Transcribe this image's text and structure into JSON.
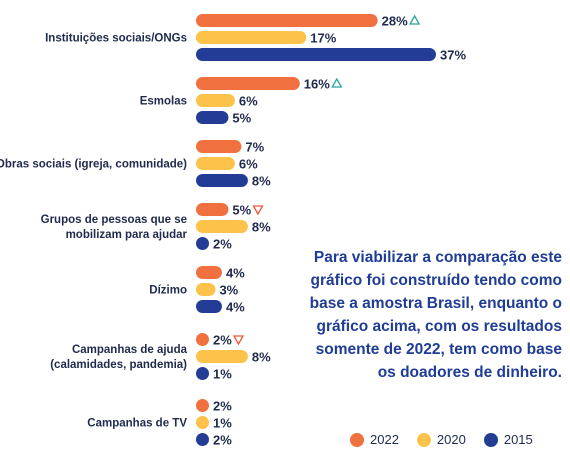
{
  "chart_data": {
    "type": "bar",
    "orientation": "horizontal",
    "categories": [
      [
        "Instituições sociais/ONGs"
      ],
      [
        "Esmolas"
      ],
      [
        "Obras sociais (igreja, comunidade)"
      ],
      [
        "Grupos de pessoas que se",
        "mobilizam para ajudar"
      ],
      [
        "Dízimo"
      ],
      [
        "Campanhas de ajuda",
        "(calamidades, pandemia)"
      ],
      [
        "Campanhas de TV"
      ]
    ],
    "series": [
      {
        "name": "2022",
        "color": "#f07040",
        "values": [
          28,
          16,
          7,
          5,
          4,
          2,
          2
        ]
      },
      {
        "name": "2020",
        "color": "#fcc24a",
        "values": [
          17,
          6,
          6,
          8,
          3,
          8,
          1
        ]
      },
      {
        "name": "2015",
        "color": "#233d96",
        "values": [
          37,
          5,
          8,
          2,
          4,
          1,
          2
        ]
      }
    ],
    "value_suffix": "%",
    "markers": [
      {
        "category": 0,
        "series": 0,
        "direction": "up",
        "color": "#2aa59a"
      },
      {
        "category": 1,
        "series": 0,
        "direction": "up",
        "color": "#2aa59a"
      },
      {
        "category": 3,
        "series": 0,
        "direction": "down",
        "color": "#e8583a"
      },
      {
        "category": 5,
        "series": 0,
        "direction": "down",
        "color": "#e8583a"
      }
    ],
    "legend_position": "bottom-right",
    "grid": false
  },
  "note": "Para viabilizar a comparação este gráfico foi construído tendo como base a amostra Brasil, enquanto o gráfico acima, com os resultados somente de 2022, tem como base os doadores de dinheiro."
}
